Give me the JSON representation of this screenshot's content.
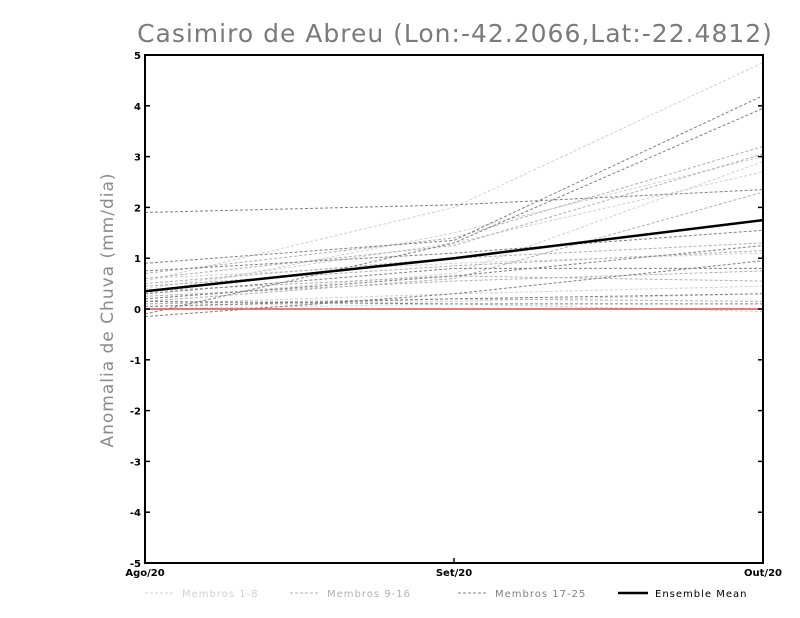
{
  "chart_data": {
    "type": "line",
    "title": "Casimiro de Abreu (Lon:-42.2066,Lat:-22.4812)",
    "ylabel": "Anomalia de Chuva (mm/dia)",
    "xlabel": "",
    "categories": [
      "Ago/20",
      "Set/20",
      "Out/20"
    ],
    "ylim": [
      -5,
      5
    ],
    "yticks": [
      "5",
      "4",
      "3",
      "2",
      "1",
      "0",
      "-1",
      "-2",
      "-3",
      "-4",
      "-5"
    ],
    "grid": false,
    "legend_position": "bottom",
    "reference_line": {
      "value": 0,
      "color": "#e05050"
    },
    "legend": [
      {
        "label": "Membros 1-8",
        "color": "#d0d0d0",
        "style": "dashed"
      },
      {
        "label": "Membros 9-16",
        "color": "#b0b0b0",
        "style": "dashed"
      },
      {
        "label": "Membros 17-25",
        "color": "#808080",
        "style": "dashed"
      },
      {
        "label": "Ensemble Mean",
        "color": "#000000",
        "style": "solid"
      }
    ],
    "series": [
      {
        "group": 1,
        "values": [
          0.55,
          2.0,
          4.85
        ]
      },
      {
        "group": 1,
        "values": [
          0.3,
          1.5,
          3.0
        ]
      },
      {
        "group": 1,
        "values": [
          0.6,
          0.9,
          1.1
        ]
      },
      {
        "group": 1,
        "values": [
          0.1,
          0.3,
          0.45
        ]
      },
      {
        "group": 1,
        "values": [
          0.2,
          0.7,
          2.9
        ]
      },
      {
        "group": 1,
        "values": [
          0.05,
          0.15,
          0.3
        ]
      },
      {
        "group": 1,
        "values": [
          0.4,
          1.3,
          2.7
        ]
      },
      {
        "group": 1,
        "values": [
          0.0,
          0.1,
          -0.05
        ]
      },
      {
        "group": 2,
        "values": [
          0.7,
          1.4,
          3.2
        ]
      },
      {
        "group": 2,
        "values": [
          0.25,
          0.55,
          0.75
        ]
      },
      {
        "group": 2,
        "values": [
          0.5,
          1.0,
          1.3
        ]
      },
      {
        "group": 2,
        "values": [
          0.15,
          0.6,
          2.3
        ]
      },
      {
        "group": 2,
        "values": [
          0.35,
          0.65,
          0.55
        ]
      },
      {
        "group": 2,
        "values": [
          0.1,
          0.2,
          0.15
        ]
      },
      {
        "group": 2,
        "values": [
          0.6,
          1.25,
          3.05
        ]
      },
      {
        "group": 2,
        "values": [
          0.45,
          0.85,
          1.15
        ]
      },
      {
        "group": 3,
        "values": [
          1.9,
          2.05,
          2.35
        ]
      },
      {
        "group": 3,
        "values": [
          0.9,
          1.35,
          4.2
        ]
      },
      {
        "group": 3,
        "values": [
          -0.1,
          1.3,
          3.95
        ]
      },
      {
        "group": 3,
        "values": [
          0.75,
          1.1,
          1.55
        ]
      },
      {
        "group": 3,
        "values": [
          0.2,
          0.65,
          1.25
        ]
      },
      {
        "group": 3,
        "values": [
          -0.15,
          0.3,
          0.95
        ]
      },
      {
        "group": 3,
        "values": [
          0.3,
          0.8,
          0.8
        ]
      },
      {
        "group": 3,
        "values": [
          0.05,
          0.2,
          0.3
        ]
      },
      {
        "group": 3,
        "values": [
          0.15,
          0.1,
          0.1
        ]
      }
    ],
    "ensemble_mean": {
      "name": "Ensemble Mean",
      "values": [
        0.35,
        1.0,
        1.75
      ]
    }
  }
}
